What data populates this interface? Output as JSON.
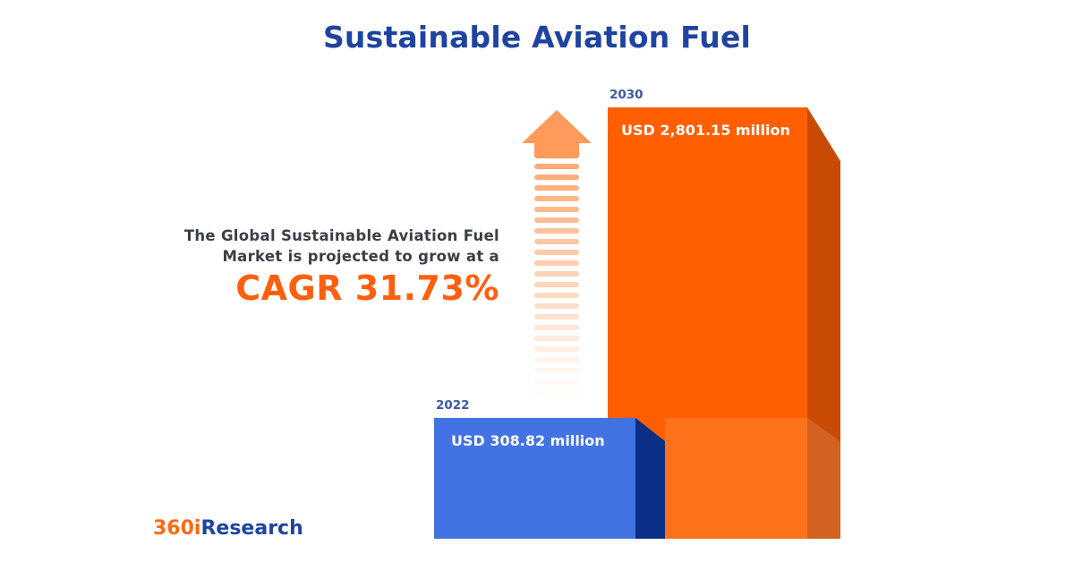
{
  "title": "Sustainable Aviation Fuel",
  "description_line1": "The Global Sustainable Aviation Fuel",
  "description_line2": "Market is projected to grow at a",
  "cagr_label": "CAGR 31.73%",
  "brand": {
    "part1": "360i",
    "part2": "Research"
  },
  "colors": {
    "title": "#1f44a0",
    "accent": "#ff5f0f",
    "bar_2022": "#4373e3",
    "bar_2030": "#ff5f00"
  },
  "chart_data": {
    "type": "bar",
    "title": "Sustainable Aviation Fuel",
    "categories": [
      "2022",
      "2030"
    ],
    "values": [
      308.82,
      2801.15
    ],
    "value_labels": [
      "USD 308.82 million",
      "USD 2,801.15 million"
    ],
    "unit": "USD million",
    "cagr_percent": 31.73,
    "xlabel": "",
    "ylabel": "",
    "grid": false,
    "legend": "none"
  }
}
